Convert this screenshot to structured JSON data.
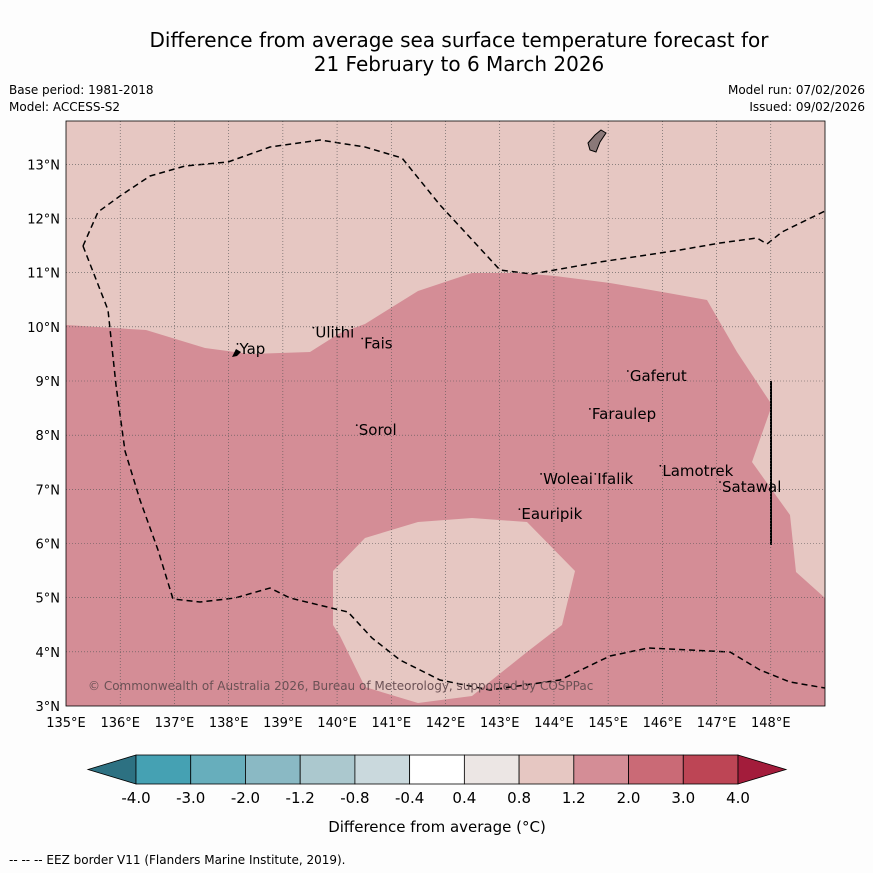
{
  "title": {
    "line1": "Difference from average sea surface temperature forecast for",
    "line2": "21 February to 6 March 2026"
  },
  "meta": {
    "base_period": "Base period: 1981-2018",
    "model": "Model: ACCESS-S2",
    "model_run": "Model run: 07/02/2026",
    "issued": "Issued: 09/02/2026"
  },
  "map": {
    "lon_range": [
      135,
      149
    ],
    "lat_range": [
      3,
      13.8
    ],
    "lon_ticks": [
      "135°E",
      "136°E",
      "137°E",
      "138°E",
      "139°E",
      "140°E",
      "141°E",
      "142°E",
      "143°E",
      "144°E",
      "145°E",
      "146°E",
      "147°E",
      "148°E"
    ],
    "lat_ticks": [
      "3°N",
      "4°N",
      "5°N",
      "6°N",
      "7°N",
      "8°N",
      "9°N",
      "10°N",
      "11°N",
      "12°N",
      "13°N"
    ],
    "places": [
      {
        "name": "Yap",
        "lon": 138.2,
        "lat": 9.5
      },
      {
        "name": "Ulithi",
        "lon": 139.6,
        "lat": 9.8
      },
      {
        "name": "Fais",
        "lon": 140.5,
        "lat": 9.6
      },
      {
        "name": "Sorol",
        "lon": 140.4,
        "lat": 8.0
      },
      {
        "name": "Gaferut",
        "lon": 145.4,
        "lat": 9.0
      },
      {
        "name": "Faraulep",
        "lon": 144.7,
        "lat": 8.3
      },
      {
        "name": "Woleai",
        "lon": 143.8,
        "lat": 7.1
      },
      {
        "name": "Ifalik",
        "lon": 144.8,
        "lat": 7.1
      },
      {
        "name": "Lamotrek",
        "lon": 146.0,
        "lat": 7.25
      },
      {
        "name": "Satawal",
        "lon": 147.1,
        "lat": 6.95
      },
      {
        "name": "Eauripik",
        "lon": 143.4,
        "lat": 6.45
      }
    ],
    "copyright": "© Commonwealth of Australia 2026, Bureau of Meteorology, supported by COSPPac"
  },
  "colorbar": {
    "labels": [
      "-4.0",
      "-3.0",
      "-2.0",
      "-1.2",
      "-0.8",
      "-0.4",
      "0.4",
      "0.8",
      "1.2",
      "2.0",
      "3.0",
      "4.0"
    ],
    "colors": [
      "#2d7182",
      "#45a1b3",
      "#67aebc",
      "#8ab9c4",
      "#abc8ce",
      "#cad9dd",
      "#ffffff",
      "#ece6e4",
      "#e6c7c2",
      "#d48d96",
      "#ca6a76",
      "#bd4555",
      "#a31c3b"
    ],
    "label": "Difference from average (°C)"
  },
  "palette": {
    "band_0_8_1_2": "#e6c7c2",
    "band_1_2_2_0": "#d48d96",
    "island": "#8a7878"
  },
  "footer": "--  --  -- EEZ border V11 (Flanders Marine Institute, 2019)."
}
